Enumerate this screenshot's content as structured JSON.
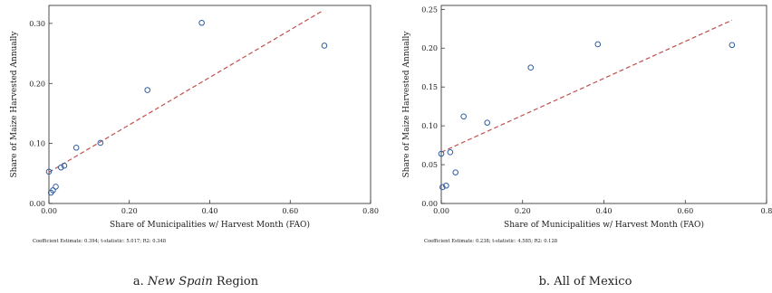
{
  "chart_data": [
    {
      "type": "scatter",
      "xlabel": "Share of Municipalities w/ Harvest Month (FAO)",
      "ylabel": "Share of Maize Harvested Annually",
      "xlim": [
        0,
        0.8
      ],
      "ylim": [
        0,
        0.33
      ],
      "xticks": [
        0,
        0.2,
        0.4,
        0.6,
        0.8
      ],
      "xtick_labels": [
        "0.00",
        "0.20",
        "0.40",
        "0.60",
        "0.80"
      ],
      "yticks": [
        0,
        0.1,
        0.2,
        0.3
      ],
      "ytick_labels": [
        "0.00",
        "0.10",
        "0.20",
        "0.30"
      ],
      "points": [
        {
          "x": 0.0,
          "y": 0.053
        },
        {
          "x": 0.005,
          "y": 0.018
        },
        {
          "x": 0.01,
          "y": 0.022
        },
        {
          "x": 0.017,
          "y": 0.028
        },
        {
          "x": 0.03,
          "y": 0.06
        },
        {
          "x": 0.038,
          "y": 0.063
        },
        {
          "x": 0.068,
          "y": 0.093
        },
        {
          "x": 0.128,
          "y": 0.101
        },
        {
          "x": 0.245,
          "y": 0.189
        },
        {
          "x": 0.38,
          "y": 0.301
        },
        {
          "x": 0.685,
          "y": 0.263
        }
      ],
      "fit_line": {
        "x": [
          0.0,
          0.683
        ],
        "y": [
          0.052,
          0.322
        ]
      },
      "marker_color": "#2f5c9e",
      "fit_color": "#c0504d",
      "fit_style": "dashed",
      "grid": false,
      "note": "Coefficient Estimate: 0.394; t-statistic: 5.017; R2: 0.348",
      "caption_prefix": "a.",
      "caption_italic": "New Spain",
      "caption_suffix": "Region"
    },
    {
      "type": "scatter",
      "xlabel": "Share of Municipalities w/ Harvest Month (FAO)",
      "ylabel": "Share of Maize Harvested Annually",
      "xlim": [
        0,
        0.8
      ],
      "ylim": [
        0,
        0.255
      ],
      "xticks": [
        0,
        0.2,
        0.4,
        0.6,
        0.8
      ],
      "xtick_labels": [
        "0.00",
        "0.20",
        "0.40",
        "0.60",
        "0.8"
      ],
      "yticks": [
        0,
        0.05,
        0.1,
        0.15,
        0.2,
        0.25
      ],
      "ytick_labels": [
        "0.00",
        "0.05",
        "0.10",
        "0.15",
        "0.20",
        "0.25"
      ],
      "points": [
        {
          "x": 0.0,
          "y": 0.064
        },
        {
          "x": 0.003,
          "y": 0.021
        },
        {
          "x": 0.012,
          "y": 0.023
        },
        {
          "x": 0.022,
          "y": 0.066
        },
        {
          "x": 0.035,
          "y": 0.04
        },
        {
          "x": 0.055,
          "y": 0.112
        },
        {
          "x": 0.113,
          "y": 0.104
        },
        {
          "x": 0.22,
          "y": 0.175
        },
        {
          "x": 0.385,
          "y": 0.205
        },
        {
          "x": 0.715,
          "y": 0.204
        }
      ],
      "fit_line": {
        "x": [
          0.0,
          0.715
        ],
        "y": [
          0.066,
          0.236
        ]
      },
      "marker_color": "#2f5c9e",
      "fit_color": "#c0504d",
      "fit_style": "dashed",
      "grid": false,
      "note": "Coefficient Estimate: 0.238; t-statistic: 4.585; R2: 0.128",
      "caption_prefix": "b.",
      "caption_italic": "",
      "caption_suffix": "All of Mexico"
    }
  ]
}
